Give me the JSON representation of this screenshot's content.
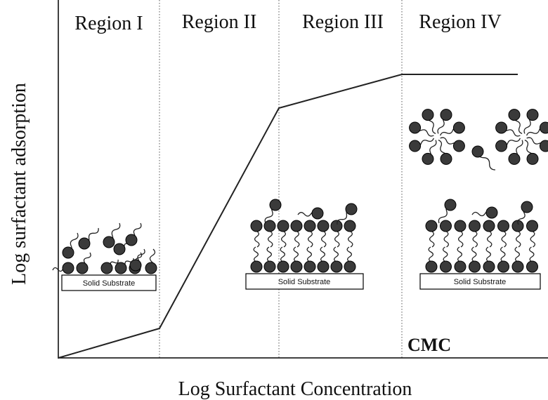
{
  "regions": [
    "Region I",
    "Region II",
    "Region III",
    "Region IV"
  ],
  "axes": {
    "y_label": "Log surfactant adsorption",
    "x_label": "Log Surfactant Concentration"
  },
  "substrates": [
    "Solid Substrate",
    "Solid Substrate",
    "Solid Substrate"
  ],
  "annotation": "CMC"
}
